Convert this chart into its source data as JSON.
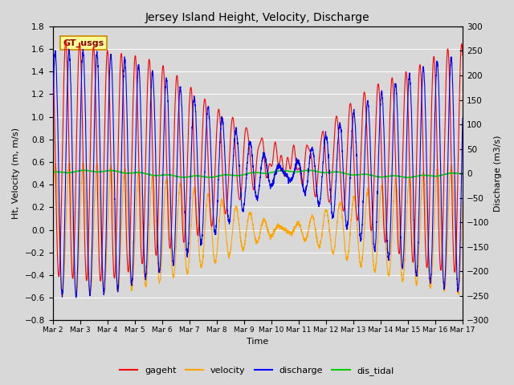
{
  "title": "Jersey Island Height, Velocity, Discharge",
  "xlabel": "Time",
  "ylabel_left": "Ht, Velocity (m, m/s)",
  "ylabel_right": "Discharge (m3/s)",
  "ylim_left": [
    -0.8,
    1.8
  ],
  "ylim_right": [
    -300,
    300
  ],
  "yticks_left": [
    -0.8,
    -0.6,
    -0.4,
    -0.2,
    0.0,
    0.2,
    0.4,
    0.6,
    0.8,
    1.0,
    1.2,
    1.4,
    1.6,
    1.8
  ],
  "yticks_right": [
    -300,
    -250,
    -200,
    -150,
    -100,
    -50,
    0,
    50,
    100,
    150,
    200,
    250,
    300
  ],
  "x_tick_labels": [
    "Mar 2",
    "Mar 3",
    "Mar 4",
    "Mar 5",
    "Mar 6",
    "Mar 7",
    "Mar 8",
    "Mar 9",
    "Mar 10",
    "Mar 11",
    "Mar 12",
    "Mar 13",
    "Mar 14",
    "Mar 15",
    "Mar 16",
    "Mar 17"
  ],
  "legend_labels": [
    "gageht",
    "velocity",
    "discharge",
    "dis_tidal"
  ],
  "legend_colors": [
    "#ff0000",
    "#ffa500",
    "#0000ff",
    "#00cc00"
  ],
  "annotation_text": "GT_usgs",
  "annotation_color": "#880000",
  "annotation_bg": "#ffff99",
  "annotation_border": "#cc8800",
  "colors": {
    "gageht": "#ff0000",
    "velocity": "#ffa500",
    "discharge": "#0000ff",
    "dis_tidal": "#00cc00"
  },
  "background_color": "#d8d8d8",
  "plot_bg_color": "#d8d8d8",
  "grid_color": "#ffffff",
  "n_days": 15,
  "figsize": [
    6.4,
    4.8
  ],
  "dpi": 100
}
